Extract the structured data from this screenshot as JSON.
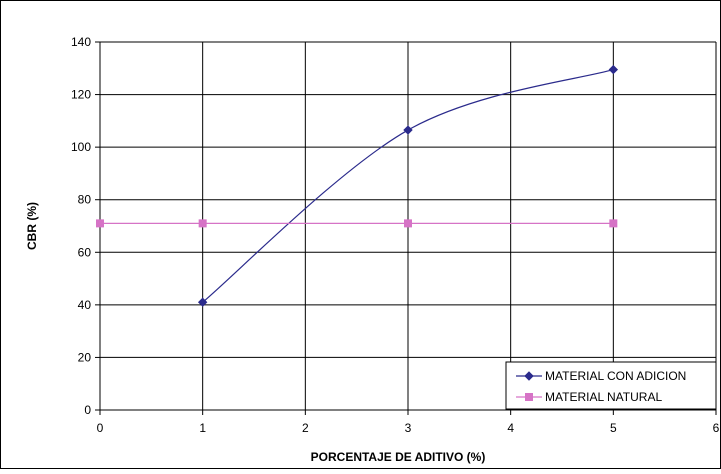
{
  "chart_data": {
    "type": "line",
    "title": "",
    "xlabel": "PORCENTAJE DE ADITIVO (%)",
    "ylabel": "CBR (%)",
    "xlim": [
      0,
      6
    ],
    "ylim": [
      0,
      140
    ],
    "x_ticks": [
      0,
      1,
      2,
      3,
      4,
      5,
      6
    ],
    "y_ticks": [
      0,
      20,
      40,
      60,
      80,
      100,
      120,
      140
    ],
    "grid": true,
    "legend_position": "bottom-right",
    "series": [
      {
        "name": "MATERIAL CON ADICION",
        "color": "#2B2B8C",
        "marker": "diamond",
        "smooth": true,
        "x": [
          1,
          3,
          5
        ],
        "y": [
          41,
          106.5,
          129.5
        ]
      },
      {
        "name": "MATERIAL NATURAL",
        "color": "#D673C6",
        "marker": "square",
        "smooth": false,
        "x": [
          0,
          1,
          3,
          5
        ],
        "y": [
          71,
          71,
          71,
          71
        ]
      }
    ]
  }
}
